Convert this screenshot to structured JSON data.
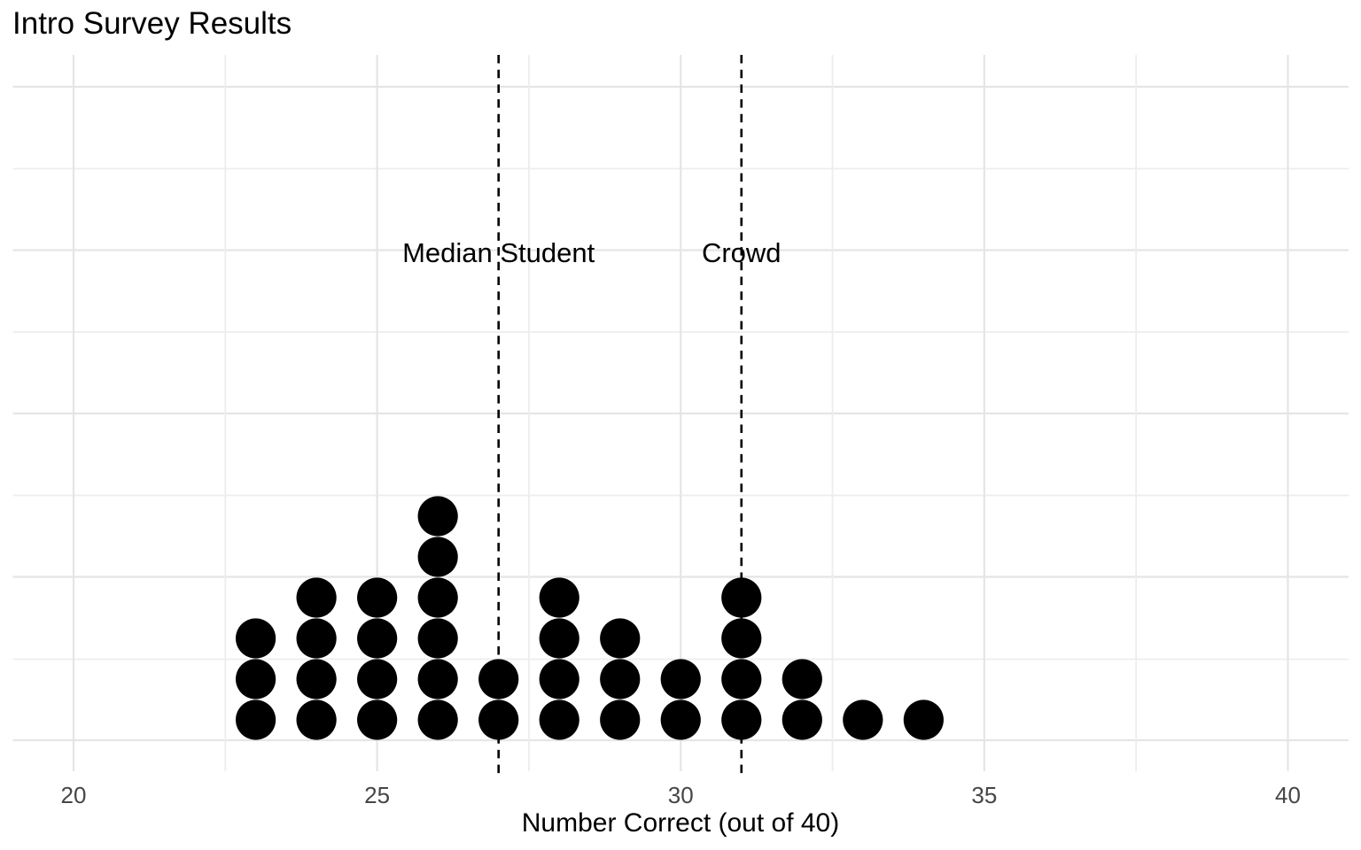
{
  "chart_data": {
    "type": "scatter",
    "subtype": "dot-plot",
    "title": "Intro Survey Results",
    "xlabel": "Number Correct (out of 40)",
    "ylabel": "",
    "xlim": [
      19,
      41
    ],
    "x_ticks": [
      20,
      25,
      30,
      35,
      40
    ],
    "grid": true,
    "legend": false,
    "dot_data": {
      "values": [
        23,
        24,
        25,
        26,
        27,
        28,
        29,
        30,
        31,
        32,
        33,
        34
      ],
      "counts": [
        3,
        4,
        4,
        6,
        2,
        4,
        3,
        2,
        4,
        2,
        1,
        1
      ]
    },
    "vlines": [
      {
        "x": 27,
        "label": "Median Student"
      },
      {
        "x": 31,
        "label": "Crowd"
      }
    ],
    "colors": {
      "dot": "#000000",
      "reference_line": "#000000",
      "grid_major": "#e5e5e5",
      "grid_minor": "#ededed",
      "tick_label": "#464646",
      "title": "#000000"
    }
  }
}
